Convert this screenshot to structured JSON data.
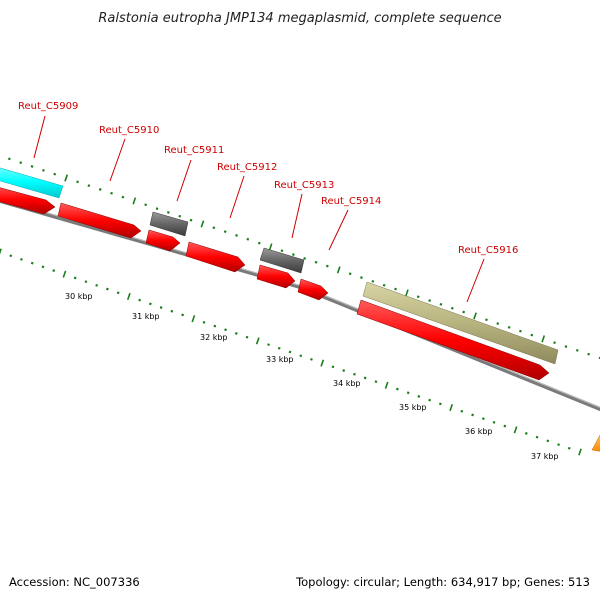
{
  "title": "Ralstonia eutropha JMP134 megaplasmid, complete sequence",
  "gene_labels": [
    "Reut_C5909",
    "Reut_C5910",
    "Reut_C5911",
    "Reut_C5912",
    "Reut_C5913",
    "Reut_C5914",
    "Reut_C5916"
  ],
  "kbp_labels": [
    "30 kbp",
    "31 kbp",
    "32 kbp",
    "33 kbp",
    "34 kbp",
    "35 kbp",
    "36 kbp",
    "37 kbp"
  ],
  "footer": {
    "accession": "Accession: NC_007336",
    "topology": "Topology: circular; Length: 634,917 bp; Genes: 513"
  },
  "colors": {
    "cds_forward": "#ff0000",
    "cyan_feature": "#00ffff",
    "gray_feature": "#606060",
    "khaki_feature": "#b4b07a",
    "orange_feature": "#ff9900",
    "backbone": "#777777",
    "ticks": "#1a7f1a",
    "gene_label_text": "#cc0000"
  }
}
